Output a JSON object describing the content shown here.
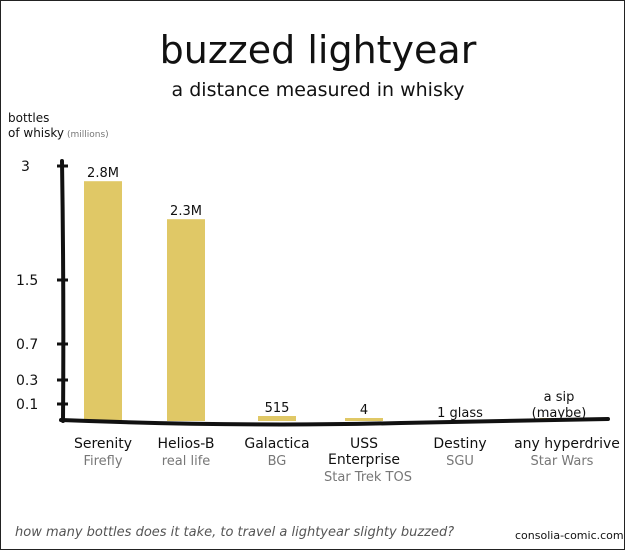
{
  "chart_data": {
    "type": "bar",
    "title": "buzzed lightyear",
    "subtitle": "a distance measured in whisky",
    "ylabel_line1": "bottles",
    "ylabel_line2": "of whisky",
    "ylabel_unit": "(millions)",
    "ytick_labels": [
      "3",
      "1.5",
      "0.7",
      "0.3",
      "0.1"
    ],
    "categories": [
      "Serenity",
      "Helios-B",
      "Galactica",
      "USS Enterprise",
      "Destiny",
      "any hyperdrive"
    ],
    "category_lines": [
      [
        "Serenity"
      ],
      [
        "Helios-B"
      ],
      [
        "Galactica"
      ],
      [
        "USS",
        "Enterprise"
      ],
      [
        "Destiny"
      ],
      [
        "any hyperdrive"
      ]
    ],
    "sources": [
      "Firefly",
      "real life",
      "BG",
      "Star Trek TOS",
      "SGU",
      "Star Wars"
    ],
    "values": [
      2.8,
      2.3,
      0.000515,
      4e-06,
      1.4e-09,
      1e-10
    ],
    "data_labels": [
      [
        "2.8M"
      ],
      [
        "2.3M"
      ],
      [
        "515"
      ],
      [
        "4"
      ],
      [
        "1 glass"
      ],
      [
        "a sip",
        "(maybe)"
      ]
    ],
    "colors": {
      "bar": "#e0c866",
      "axis": "#111111",
      "source_text": "#777777"
    }
  },
  "footer": {
    "caption": "how many bottles does it take, to travel a lightyear slighty buzzed?",
    "credit": "consolia-comic.com"
  }
}
